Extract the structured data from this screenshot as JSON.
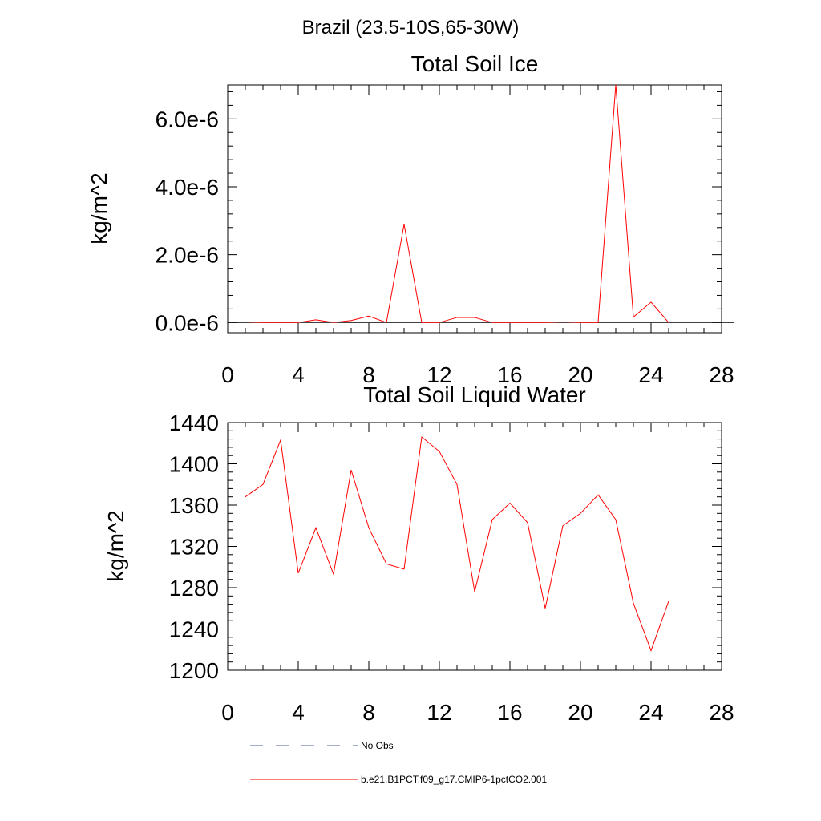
{
  "suptitle": "Brazil (23.5-10S,65-30W)",
  "legend": {
    "items": [
      {
        "label": "No Obs",
        "style": "dashed",
        "color": "#4a5a9a"
      },
      {
        "label": "b.e21.B1PCT.f09_g17.CMIP6-1pctCO2.001",
        "style": "solid",
        "color": "#ff0000"
      }
    ]
  },
  "chart_data": [
    {
      "type": "line",
      "title": "Total Soil Ice",
      "xlabel": "",
      "ylabel": "kg/m^2",
      "xlim": [
        0,
        28
      ],
      "ylim": [
        -3e-07,
        7e-06
      ],
      "xticks": [
        0,
        4,
        8,
        12,
        16,
        20,
        24,
        28
      ],
      "xtick_labels": [
        "0",
        "4",
        "8",
        "12",
        "16",
        "20",
        "24",
        "28"
      ],
      "yticks": [
        0,
        2e-06,
        4e-06,
        6e-06
      ],
      "ytick_labels": [
        "0.0e-6",
        "2.0e-6",
        "4.0e-6",
        "6.0e-6"
      ],
      "series": [
        {
          "name": "b.e21.B1PCT.f09_g17.CMIP6-1pctCO2.001",
          "color": "#ff0000",
          "x": [
            1,
            2,
            3,
            4,
            5,
            6,
            7,
            8,
            9,
            10,
            11,
            12,
            13,
            14,
            15,
            16,
            17,
            18,
            19,
            20,
            21,
            22,
            23,
            24,
            25
          ],
          "y": [
            2e-08,
            0,
            0,
            0,
            8e-08,
            0,
            6e-08,
            1.9e-07,
            0,
            2.9e-06,
            0,
            0,
            1.5e-07,
            1.5e-07,
            0,
            0,
            0,
            0,
            2e-08,
            0,
            0,
            7e-06,
            1.6e-07,
            6e-07,
            0
          ]
        }
      ]
    },
    {
      "type": "line",
      "title": "Total Soil Liquid Water",
      "xlabel": "",
      "ylabel": "kg/m^2",
      "xlim": [
        0,
        28
      ],
      "ylim": [
        1200,
        1440
      ],
      "xticks": [
        0,
        4,
        8,
        12,
        16,
        20,
        24,
        28
      ],
      "xtick_labels": [
        "0",
        "4",
        "8",
        "12",
        "16",
        "20",
        "24",
        "28"
      ],
      "yticks": [
        1200,
        1240,
        1280,
        1320,
        1360,
        1400,
        1440
      ],
      "ytick_labels": [
        "1200",
        "1240",
        "1280",
        "1320",
        "1360",
        "1400",
        "1440"
      ],
      "series": [
        {
          "name": "b.e21.B1PCT.f09_g17.CMIP6-1pctCO2.001",
          "color": "#ff0000",
          "x": [
            1,
            2,
            3,
            4,
            5,
            6,
            7,
            8,
            9,
            10,
            11,
            12,
            13,
            14,
            15,
            16,
            17,
            18,
            19,
            20,
            21,
            22,
            23,
            24,
            25
          ],
          "y": [
            1368,
            1380,
            1423,
            1294,
            1338,
            1293,
            1394,
            1338,
            1303,
            1298,
            1426,
            1412,
            1380,
            1276,
            1346,
            1362,
            1343,
            1260,
            1340,
            1352,
            1370,
            1346,
            1265,
            1219,
            1267
          ]
        }
      ]
    }
  ]
}
